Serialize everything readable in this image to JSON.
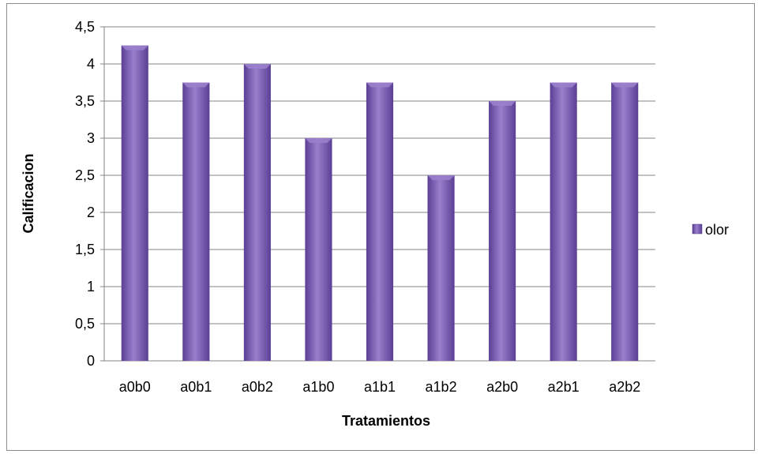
{
  "chart_data": {
    "type": "bar",
    "categories": [
      "a0b0",
      "a0b1",
      "a0b2",
      "a1b0",
      "a1b1",
      "a1b2",
      "a2b0",
      "a2b1",
      "a2b2"
    ],
    "series": [
      {
        "name": "olor",
        "values": [
          4.25,
          3.75,
          4.0,
          3.0,
          3.75,
          2.5,
          3.5,
          3.75,
          3.75
        ]
      }
    ],
    "title": "",
    "xlabel": "Tratamientos",
    "ylabel": "Calificacion",
    "ylim": [
      0,
      4.5
    ],
    "yticks": [
      "0",
      "0,5",
      "1",
      "1,5",
      "2",
      "2,5",
      "3",
      "3,5",
      "4",
      "4,5"
    ],
    "grid": true,
    "legend_position": "right",
    "colors": {
      "bar_light": "#9a7fcc",
      "bar_mid": "#7a58b8",
      "bar_dark": "#5b3f95",
      "grid": "#868686",
      "axis": "#868686"
    }
  }
}
